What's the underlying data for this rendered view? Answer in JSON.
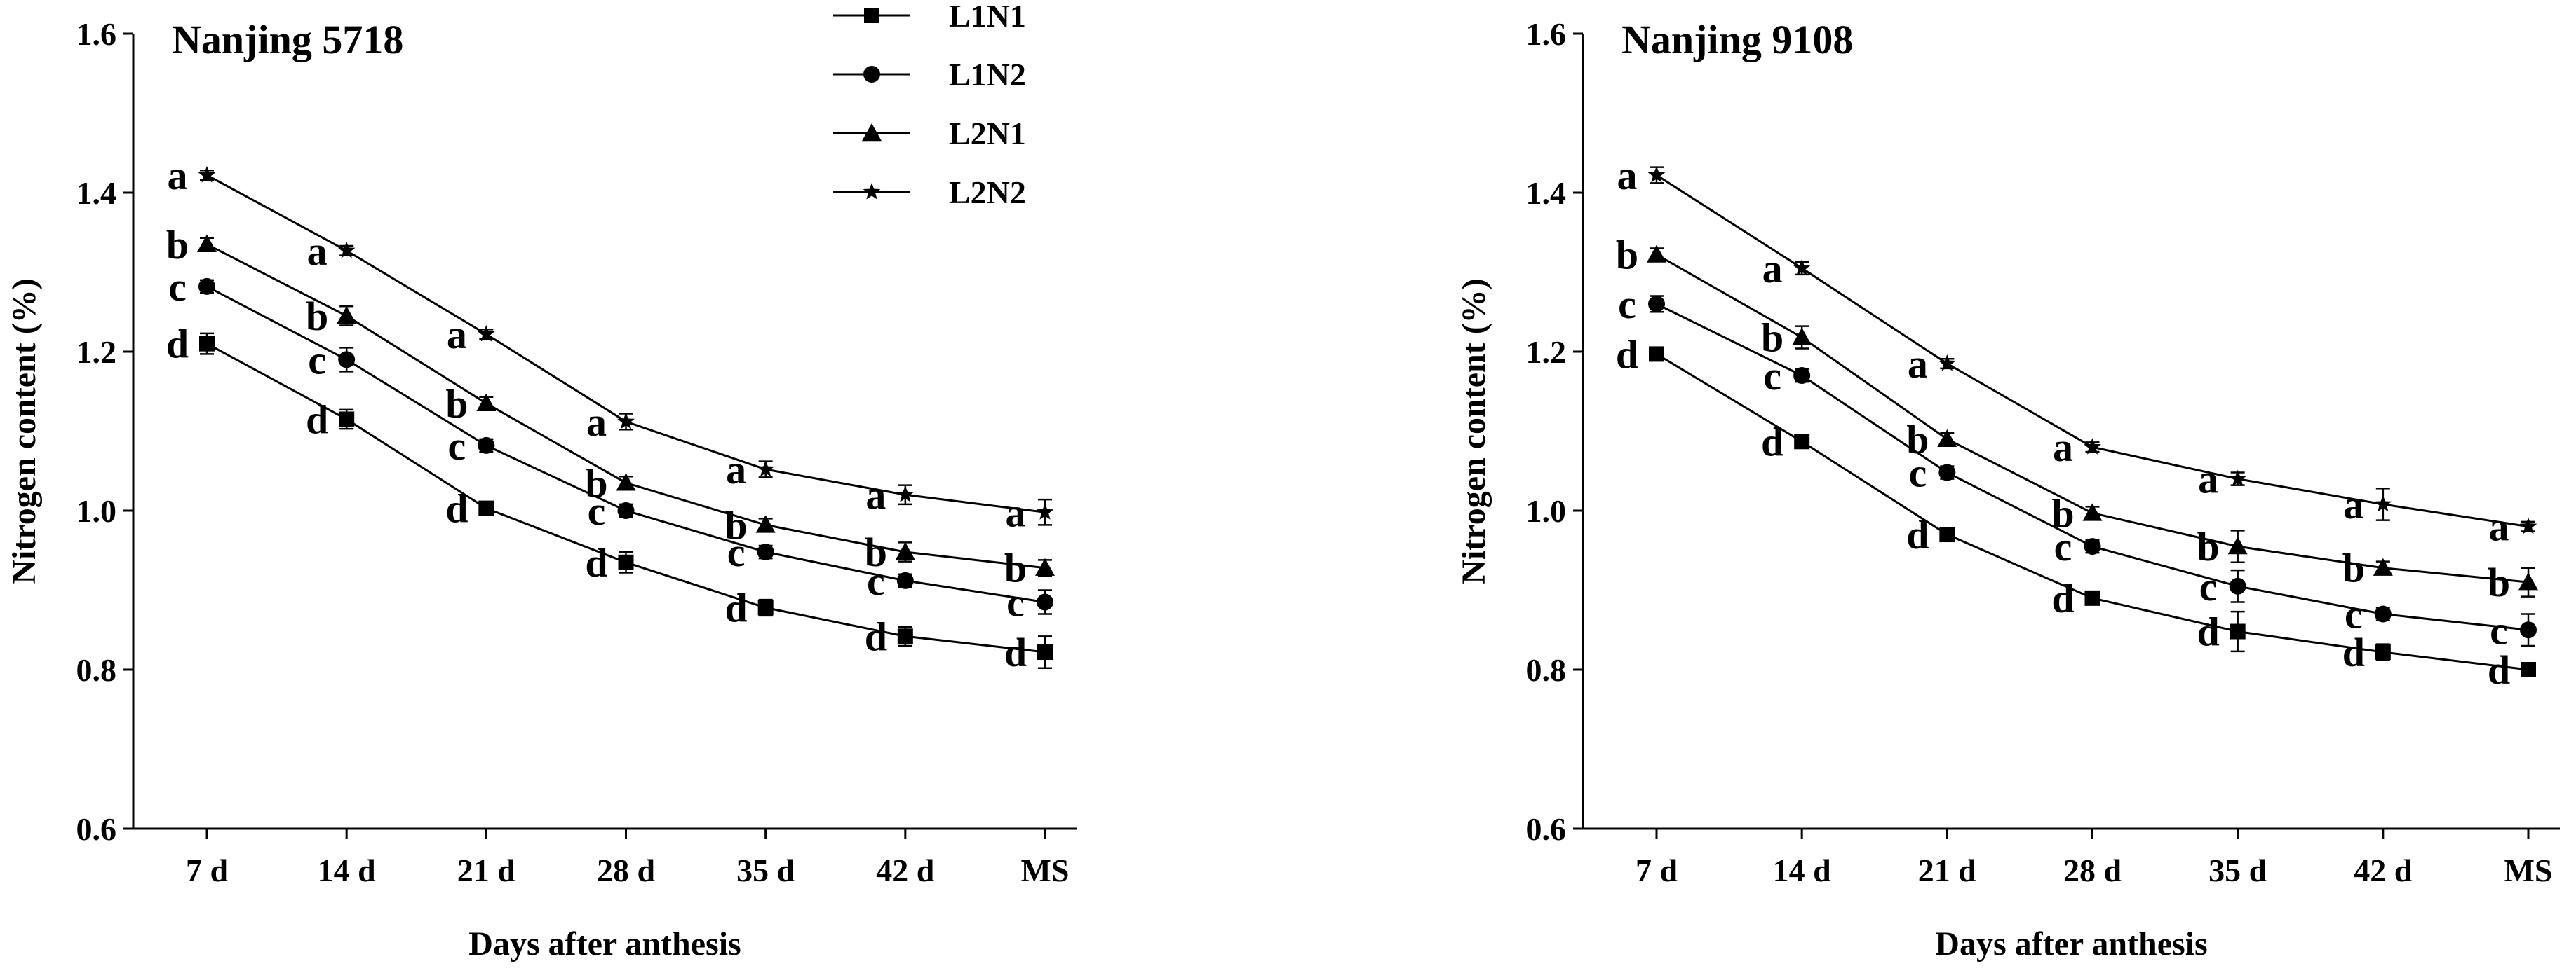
{
  "chart_data": [
    {
      "type": "line",
      "title": "Nanjing 5718",
      "xlabel": "Days after anthesis",
      "ylabel": "Nitrogen content (%)",
      "categories": [
        "7 d",
        "14 d",
        "21 d",
        "28 d",
        "35 d",
        "42 d",
        "MS"
      ],
      "ylim": [
        0.6,
        1.6
      ],
      "yticks": [
        "0.6",
        "0.8",
        "1.0",
        "1.2",
        "1.4",
        "1.6"
      ],
      "legend": "top-right",
      "series": [
        {
          "name": "L1N1",
          "marker": "square",
          "values": [
            1.21,
            1.115,
            1.003,
            0.935,
            0.878,
            0.842,
            0.822
          ],
          "errors": [
            0.013,
            0.012,
            0.008,
            0.013,
            0.01,
            0.012,
            0.02
          ],
          "letters": [
            "d",
            "d",
            "d",
            "d",
            "d",
            "d",
            "d"
          ]
        },
        {
          "name": "L1N2",
          "marker": "circle",
          "values": [
            1.282,
            1.19,
            1.082,
            1.0,
            0.948,
            0.912,
            0.885
          ],
          "errors": [
            0.008,
            0.015,
            0.008,
            0.008,
            0.008,
            0.008,
            0.015
          ],
          "letters": [
            "c",
            "c",
            "c",
            "c",
            "c",
            "c",
            "c"
          ]
        },
        {
          "name": "L2N1",
          "marker": "triangle",
          "values": [
            1.335,
            1.245,
            1.135,
            1.035,
            0.982,
            0.948,
            0.928
          ],
          "errors": [
            0.008,
            0.012,
            0.008,
            0.008,
            0.008,
            0.012,
            0.01
          ],
          "letters": [
            "b",
            "b",
            "b",
            "b",
            "b",
            "b",
            "b"
          ]
        },
        {
          "name": "L2N2",
          "marker": "star",
          "values": [
            1.422,
            1.327,
            1.222,
            1.112,
            1.052,
            1.02,
            0.998
          ],
          "errors": [
            0.006,
            0.006,
            0.006,
            0.01,
            0.01,
            0.012,
            0.016
          ],
          "letters": [
            "a",
            "a",
            "a",
            "a",
            "a",
            "a",
            "a"
          ]
        }
      ]
    },
    {
      "type": "line",
      "title": "Nanjing 9108",
      "xlabel": "Days after anthesis",
      "ylabel": "Nitrogen content (%)",
      "categories": [
        "7 d",
        "14 d",
        "21 d",
        "28 d",
        "35 d",
        "42 d",
        "MS"
      ],
      "ylim": [
        0.6,
        1.6
      ],
      "yticks": [
        "0.6",
        "0.8",
        "1.0",
        "1.2",
        "1.4",
        "1.6"
      ],
      "series": [
        {
          "name": "L1N1",
          "marker": "square",
          "values": [
            1.197,
            1.087,
            0.97,
            0.89,
            0.848,
            0.822,
            0.8
          ],
          "errors": [
            0.006,
            0.006,
            0.006,
            0.008,
            0.025,
            0.01,
            0.008
          ],
          "letters": [
            "d",
            "d",
            "d",
            "d",
            "d",
            "d",
            "d"
          ]
        },
        {
          "name": "L1N2",
          "marker": "circle",
          "values": [
            1.26,
            1.17,
            1.048,
            0.955,
            0.905,
            0.87,
            0.85
          ],
          "errors": [
            0.01,
            0.008,
            0.008,
            0.008,
            0.02,
            0.008,
            0.02
          ],
          "letters": [
            "c",
            "c",
            "c",
            "c",
            "c",
            "c",
            "c"
          ]
        },
        {
          "name": "L2N1",
          "marker": "triangle",
          "values": [
            1.322,
            1.218,
            1.09,
            0.997,
            0.955,
            0.928,
            0.91
          ],
          "errors": [
            0.008,
            0.014,
            0.008,
            0.008,
            0.02,
            0.008,
            0.018
          ],
          "letters": [
            "b",
            "b",
            "b",
            "b",
            "b",
            "b",
            "b"
          ]
        },
        {
          "name": "L2N2",
          "marker": "star",
          "values": [
            1.422,
            1.305,
            1.185,
            1.08,
            1.04,
            1.008,
            0.98
          ],
          "errors": [
            0.01,
            0.008,
            0.006,
            0.006,
            0.008,
            0.02,
            0.006
          ],
          "letters": [
            "a",
            "a",
            "a",
            "a",
            "a",
            "a",
            "a"
          ]
        }
      ]
    }
  ]
}
